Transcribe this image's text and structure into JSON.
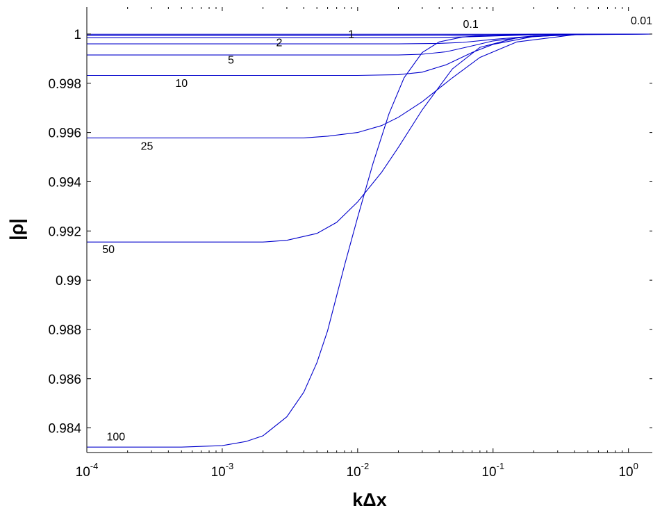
{
  "chart_data": {
    "type": "line",
    "xlabel": "kΔx",
    "ylabel": "|ρ|",
    "xscale": "log",
    "xlim": [
      0.0001,
      1.5
    ],
    "ylim": [
      0.983,
      1.0011
    ],
    "grid": false,
    "legend": "none",
    "line_color": "#0000cc",
    "x_ticks": [
      {
        "base": "10",
        "exp": "-4",
        "value": 0.0001
      },
      {
        "base": "10",
        "exp": "-3",
        "value": 0.001
      },
      {
        "base": "10",
        "exp": "-2",
        "value": 0.01
      },
      {
        "base": "10",
        "exp": "-1",
        "value": 0.1
      },
      {
        "base": "10",
        "exp": "0",
        "value": 1
      }
    ],
    "y_ticks": [
      {
        "label": "1",
        "value": 1.0
      },
      {
        "label": "0.998",
        "value": 0.998
      },
      {
        "label": "0.996",
        "value": 0.996
      },
      {
        "label": "0.994",
        "value": 0.994
      },
      {
        "label": "0.992",
        "value": 0.992
      },
      {
        "label": "0.99",
        "value": 0.99
      },
      {
        "label": "0.988",
        "value": 0.988
      },
      {
        "label": "0.986",
        "value": 0.986
      },
      {
        "label": "0.984",
        "value": 0.984
      }
    ],
    "series": [
      {
        "label": "0.01",
        "label_x": 1.5,
        "label_y": 1.00039,
        "x": [
          0.0001,
          0.01,
          0.05,
          0.1,
          0.3,
          1.0,
          1.5
        ],
        "y": [
          0.99999,
          0.99999,
          0.99999,
          0.99999,
          1.0,
          1.0,
          1.0
        ]
      },
      {
        "label": "0.1",
        "label_x": 0.06,
        "label_y": 1.00025,
        "x": [
          0.0001,
          0.01,
          0.05,
          0.1,
          0.3,
          1.0,
          1.5
        ],
        "y": [
          0.99993,
          0.99993,
          0.99994,
          0.99995,
          0.99998,
          1.0,
          1.0
        ]
      },
      {
        "label": "1",
        "label_x": 0.0085,
        "label_y": 0.99985,
        "x": [
          0.0001,
          0.02,
          0.04,
          0.06,
          0.1,
          0.2,
          0.5,
          1.5
        ],
        "y": [
          0.99985,
          0.99985,
          0.99986,
          0.99988,
          0.99992,
          0.99997,
          1.0,
          1.0
        ]
      },
      {
        "label": "2",
        "label_x": 0.0025,
        "label_y": 0.9995,
        "x": [
          0.0001,
          0.02,
          0.04,
          0.06,
          0.1,
          0.2,
          0.5,
          1.5
        ],
        "y": [
          0.9996,
          0.9996,
          0.99962,
          0.99966,
          0.99978,
          0.99992,
          0.99999,
          1.0
        ]
      },
      {
        "label": "5",
        "label_x": 0.0011,
        "label_y": 0.9988,
        "x": [
          0.0001,
          0.02,
          0.03,
          0.045,
          0.07,
          0.1,
          0.2,
          0.5,
          1.5
        ],
        "y": [
          0.99915,
          0.99915,
          0.99918,
          0.99928,
          0.99952,
          0.99972,
          0.99992,
          0.99999,
          1.0
        ]
      },
      {
        "label": "10",
        "label_x": 0.00045,
        "label_y": 0.99785,
        "x": [
          0.0001,
          0.01,
          0.02,
          0.03,
          0.045,
          0.07,
          0.1,
          0.2,
          0.5,
          1.5
        ],
        "y": [
          0.99832,
          0.99832,
          0.99835,
          0.99845,
          0.99875,
          0.99925,
          0.99958,
          0.9999,
          0.99999,
          1.0
        ]
      },
      {
        "label": "25",
        "label_x": 0.00025,
        "label_y": 0.9953,
        "x": [
          0.0001,
          0.004,
          0.006,
          0.01,
          0.015,
          0.02,
          0.03,
          0.05,
          0.08,
          0.15,
          0.4,
          1.5
        ],
        "y": [
          0.99578,
          0.99578,
          0.99585,
          0.996,
          0.99628,
          0.99662,
          0.99725,
          0.99822,
          0.99905,
          0.99968,
          0.99997,
          1.0
        ]
      },
      {
        "label": "50",
        "label_x": 0.00013,
        "label_y": 0.9911,
        "x": [
          0.0001,
          0.002,
          0.003,
          0.005,
          0.007,
          0.01,
          0.015,
          0.02,
          0.03,
          0.05,
          0.08,
          0.15,
          0.4,
          1.5
        ],
        "y": [
          0.99155,
          0.99155,
          0.99162,
          0.9919,
          0.99235,
          0.99318,
          0.99438,
          0.9954,
          0.99692,
          0.99858,
          0.99946,
          0.99985,
          0.99999,
          1.0
        ]
      },
      {
        "label": "100",
        "label_x": 0.00014,
        "label_y": 0.9835,
        "x": [
          0.0001,
          0.0005,
          0.001,
          0.0015,
          0.002,
          0.003,
          0.004,
          0.005,
          0.006,
          0.008,
          0.01,
          0.013,
          0.017,
          0.022,
          0.03,
          0.04,
          0.06,
          0.1,
          0.2,
          0.5,
          1.5
        ],
        "y": [
          0.98322,
          0.98322,
          0.98328,
          0.98345,
          0.98368,
          0.98445,
          0.98545,
          0.98665,
          0.98795,
          0.9906,
          0.99255,
          0.99475,
          0.99675,
          0.99822,
          0.99925,
          0.99968,
          0.99988,
          0.99996,
          0.99999,
          1.0,
          1.0
        ]
      }
    ]
  }
}
